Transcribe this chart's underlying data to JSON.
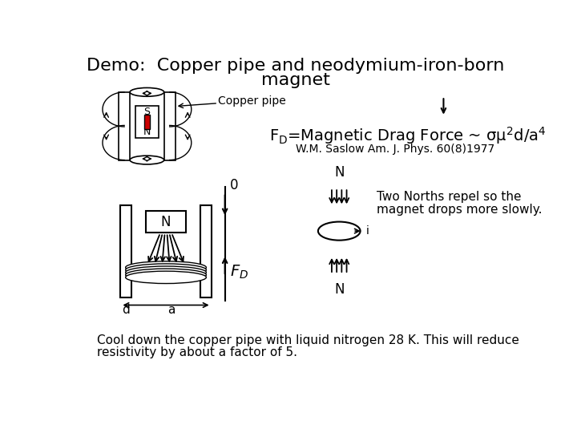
{
  "title_line1": "Demo:  Copper pipe and neodymium-iron-born",
  "title_line2": "magnet",
  "title_fontsize": 16,
  "bg_color": "#ffffff",
  "text_color": "#000000",
  "copper_pipe_label": "Copper pipe",
  "reference": "W.M. Saslow Am. J. Phys. 60(8)1977",
  "two_norths_text1": "Two Norths repel so the",
  "two_norths_text2": "magnet drops more slowly.",
  "bottom_text1": "Cool down the copper pipe with liquid nitrogen 28 K. This will reduce",
  "bottom_text2": "resistivity by about a factor of 5.",
  "red_color": "#cc0000"
}
